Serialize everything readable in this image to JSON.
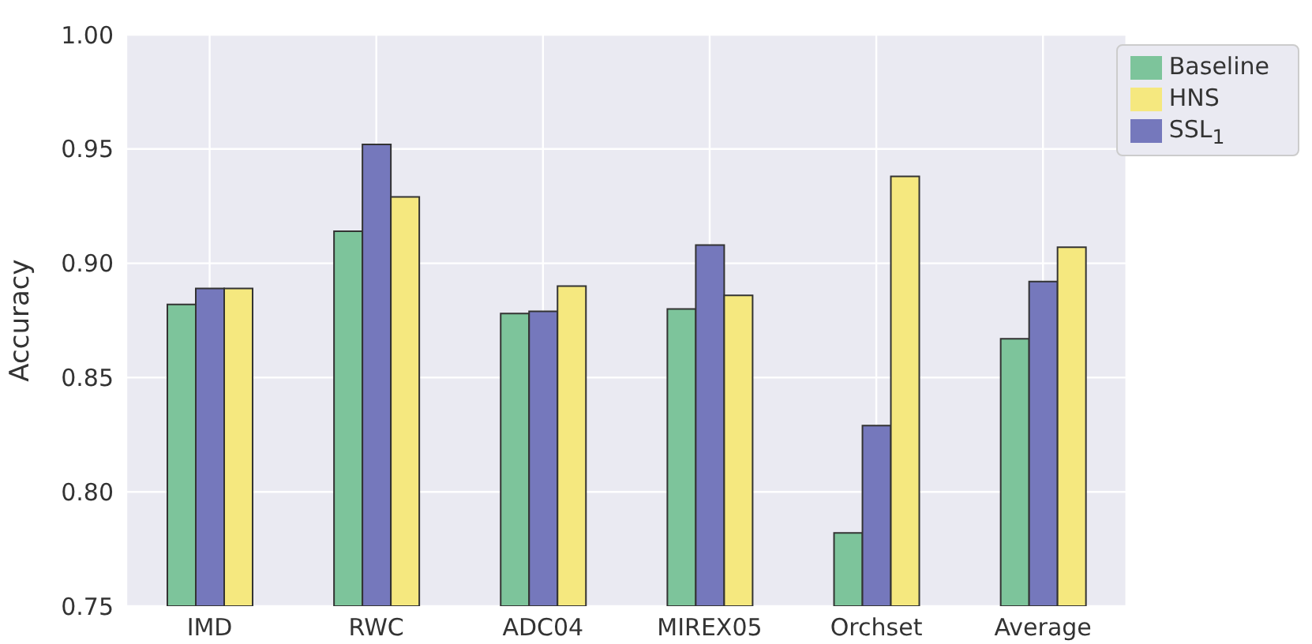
{
  "chart_data": {
    "type": "bar",
    "ylabel": "Accuracy",
    "categories": [
      "IMD",
      "RWC",
      "ADC04",
      "MIREX05",
      "Orchset",
      "Average"
    ],
    "series": [
      {
        "name": "Baseline",
        "color": "#7dc49b",
        "values": [
          0.882,
          0.914,
          0.878,
          0.88,
          0.782,
          0.867
        ]
      },
      {
        "name": "SSL$_{1}$",
        "color": "#7578bc",
        "values": [
          0.889,
          0.952,
          0.879,
          0.908,
          0.829,
          0.892
        ]
      },
      {
        "name": "HNS",
        "color": "#f5e87f",
        "values": [
          0.889,
          0.929,
          0.89,
          0.886,
          0.938,
          0.907
        ]
      }
    ],
    "ylim": [
      0.75,
      1.0
    ],
    "yticks": [
      {
        "value": 0.75,
        "label": "0.75"
      },
      {
        "value": 0.8,
        "label": "0.80"
      },
      {
        "value": 0.85,
        "label": "0.85"
      },
      {
        "value": 0.9,
        "label": "0.90"
      },
      {
        "value": 0.95,
        "label": "0.95"
      },
      {
        "value": 1.0,
        "label": "1.00"
      }
    ],
    "grid": true,
    "legend": "top right"
  }
}
